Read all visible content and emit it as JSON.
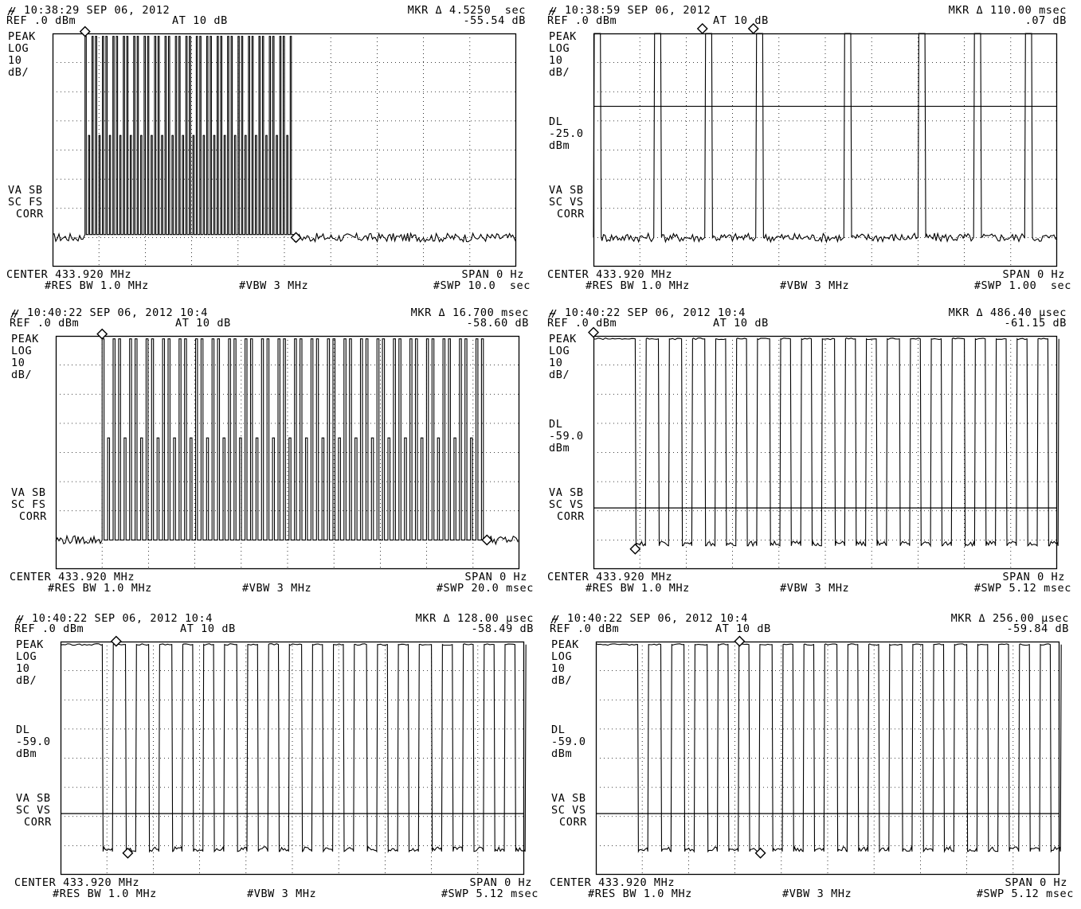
{
  "panels": [
    {
      "timestamp": "10:38:29 SEP 06, 2012",
      "mkr_label": "MKR Δ 4.5250  sec",
      "mkr_value": "-55.54 dB",
      "ref": "REF .0 dBm",
      "atten": "AT 10 dB",
      "left_labels": [
        "PEAK",
        "LOG",
        "10",
        "dB/"
      ],
      "dl": [],
      "mode_labels": [
        "VA SB",
        "SC FS",
        "CORR"
      ],
      "center": "CENTER 433.920 MHz",
      "span": "SPAN 0 Hz",
      "res_bw": "#RES BW 1.0 MHz",
      "vbw": "#VBW 3 MHz",
      "swp": "#SWP 10.0  sec",
      "trace": {
        "noise_level": -70,
        "bursts": [
          [
            0.07,
            0.52
          ]
        ],
        "burst_style": "dense",
        "pulse_count": 60,
        "high_level": -1,
        "low_level": -69,
        "markers": [
          0.07,
          0.525
        ],
        "display_line": null
      }
    },
    {
      "timestamp": "10:38:59 SEP 06, 2012",
      "mkr_label": "MKR Δ 110.00 msec",
      "mkr_value": ".07 dB",
      "ref": "REF .0 dBm",
      "atten": "AT 10 dB",
      "left_labels": [
        "PEAK",
        "LOG",
        "10",
        "dB/"
      ],
      "dl": [
        "DL",
        "-25.0",
        "dBm"
      ],
      "mode_labels": [
        "VA SB",
        "SC VS",
        "CORR"
      ],
      "center": "CENTER 433.920 MHz",
      "span": "SPAN 0 Hz",
      "res_bw": "#RES BW 1.0 MHz",
      "vbw": "#VBW 3 MHz",
      "swp": "#SWP 1.00  sec",
      "trace": {
        "noise_level": -70,
        "pulses": [
          0.0,
          0.13,
          0.24,
          0.35,
          0.54,
          0.7,
          0.82,
          0.93
        ],
        "pulse_width": 0.015,
        "high_level": 0,
        "markers": [
          0.235,
          0.345
        ],
        "display_line": -25
      }
    },
    {
      "timestamp": "10:40:22 SEP 06, 2012 10:4",
      "mkr_label": "MKR Δ 16.700 msec",
      "mkr_value": "-58.60 dB",
      "ref": "REF .0 dBm",
      "atten": "AT 10 dB",
      "left_labels": [
        "PEAK",
        "LOG",
        "10",
        "dB/"
      ],
      "dl": [],
      "mode_labels": [
        "VA SB",
        "SC FS",
        "CORR"
      ],
      "center": "CENTER 433.920 MHz",
      "span": "SPAN 0 Hz",
      "res_bw": "#RES BW 1.0 MHz",
      "vbw": "#VBW 3 MHz",
      "swp": "#SWP 20.0 msec",
      "trace": {
        "noise_level": -70,
        "bursts": [
          [
            0.1,
            0.93
          ]
        ],
        "burst_style": "dense",
        "pulse_count": 70,
        "high_level": -1,
        "low_level": -70,
        "markers": [
          0.1,
          0.93
        ],
        "display_line": null
      }
    },
    {
      "timestamp": "10:40:22 SEP 06, 2012 10:4",
      "mkr_label": "MKR Δ 486.40 μsec",
      "mkr_value": "-61.15 dB",
      "ref": "REF .0 dBm",
      "atten": "AT 10 dB",
      "left_labels": [
        "PEAK",
        "LOG",
        "10",
        "dB/"
      ],
      "dl": [
        "DL",
        "-59.0",
        "dBm"
      ],
      "mode_labels": [
        "VA SB",
        "SC VS",
        "CORR"
      ],
      "center": "CENTER 433.920 MHz",
      "span": "SPAN 0 Hz",
      "res_bw": "#RES BW 1.0 MHz",
      "vbw": "#VBW 3 MHz",
      "swp": "#SWP 5.12 msec",
      "trace": {
        "lead_high_until": 0.09,
        "gaps": [
          0.09,
          0.14,
          0.19,
          0.24,
          0.285,
          0.33,
          0.38,
          0.425,
          0.47,
          0.52,
          0.565,
          0.61,
          0.66,
          0.705,
          0.75,
          0.8,
          0.845,
          0.89,
          0.935,
          0.98
        ],
        "gap_width": 0.022,
        "high_level": -1,
        "low_level": -72,
        "markers": [
          0.0,
          0.09
        ],
        "display_line": -59
      }
    },
    {
      "timestamp": "10:40:22 SEP 06, 2012 10:4",
      "mkr_label": "MKR Δ 128.00 μsec",
      "mkr_value": "-58.49 dB",
      "ref": "REF .0 dBm",
      "atten": "AT 10 dB",
      "left_labels": [
        "PEAK",
        "LOG",
        "10",
        "dB/"
      ],
      "dl": [
        "DL",
        "-59.0",
        "dBm"
      ],
      "mode_labels": [
        "VA SB",
        "SC VS",
        "CORR"
      ],
      "center": "CENTER 433.920 MHz",
      "span": "SPAN 0 Hz",
      "res_bw": "#RES BW 1.0 MHz",
      "vbw": "#VBW 3 MHz",
      "swp": "#SWP 5.12 msec",
      "trace": {
        "lead_high_until": 0.09,
        "gaps": [
          0.09,
          0.14,
          0.19,
          0.24,
          0.285,
          0.33,
          0.38,
          0.425,
          0.47,
          0.52,
          0.565,
          0.61,
          0.66,
          0.705,
          0.75,
          0.8,
          0.845,
          0.89,
          0.935,
          0.98
        ],
        "gap_width": 0.022,
        "high_level": -1,
        "low_level": -72,
        "markers": [
          0.12,
          0.145
        ],
        "display_line": -59
      }
    },
    {
      "timestamp": "10:40:22 SEP 06, 2012 10:4",
      "mkr_label": "MKR Δ 256.00 μsec",
      "mkr_value": "-59.84 dB",
      "ref": "REF .0 dBm",
      "atten": "AT 10 dB",
      "left_labels": [
        "PEAK",
        "LOG",
        "10",
        "dB/"
      ],
      "dl": [
        "DL",
        "-59.0",
        "dBm"
      ],
      "mode_labels": [
        "VA SB",
        "SC VS",
        "CORR"
      ],
      "center": "CENTER 433.920 MHz",
      "span": "SPAN 0 Hz",
      "res_bw": "#RES BW 1.0 MHz",
      "vbw": "#VBW 3 MHz",
      "swp": "#SWP 5.12 msec",
      "trace": {
        "lead_high_until": 0.09,
        "gaps": [
          0.09,
          0.14,
          0.19,
          0.24,
          0.285,
          0.33,
          0.38,
          0.425,
          0.47,
          0.52,
          0.565,
          0.61,
          0.66,
          0.705,
          0.75,
          0.8,
          0.845,
          0.89,
          0.935,
          0.98
        ],
        "gap_width": 0.022,
        "high_level": -1,
        "low_level": -72,
        "markers": [
          0.31,
          0.355
        ],
        "display_line": -59
      }
    }
  ],
  "chart_data": [
    {
      "type": "line",
      "title": "10:38:29 SEP 06, 2012",
      "xlabel": "CENTER 433.920 MHz / SPAN 0 Hz",
      "ylabel": "dB",
      "ylim": [
        -100,
        0
      ],
      "sweep": "10.0 sec",
      "marker_delta": "4.5250 sec",
      "marker_delta_level": "-55.54 dB",
      "y_per_div": 10,
      "grid": true
    },
    {
      "type": "line",
      "title": "10:38:59 SEP 06, 2012",
      "xlabel": "CENTER 433.920 MHz / SPAN 0 Hz",
      "ylabel": "dB",
      "ylim": [
        -100,
        0
      ],
      "sweep": "1.00 sec",
      "marker_delta": "110.00 msec",
      "marker_delta_level": ".07 dB",
      "display_line": -25.0,
      "y_per_div": 10,
      "grid": true
    },
    {
      "type": "line",
      "title": "10:40:22 SEP 06, 2012 10:4",
      "xlabel": "CENTER 433.920 MHz / SPAN 0 Hz",
      "ylabel": "dB",
      "ylim": [
        -100,
        0
      ],
      "sweep": "20.0 msec",
      "marker_delta": "16.700 msec",
      "marker_delta_level": "-58.60 dB",
      "y_per_div": 10,
      "grid": true
    },
    {
      "type": "line",
      "title": "10:40:22 SEP 06, 2012 10:4",
      "xlabel": "CENTER 433.920 MHz / SPAN 0 Hz",
      "ylabel": "dB",
      "ylim": [
        -100,
        0
      ],
      "sweep": "5.12 msec",
      "marker_delta": "486.40 μsec",
      "marker_delta_level": "-61.15 dB",
      "display_line": -59.0,
      "y_per_div": 10,
      "grid": true
    },
    {
      "type": "line",
      "title": "10:40:22 SEP 06, 2012 10:4",
      "xlabel": "CENTER 433.920 MHz / SPAN 0 Hz",
      "ylabel": "dB",
      "ylim": [
        -100,
        0
      ],
      "sweep": "5.12 msec",
      "marker_delta": "128.00 μsec",
      "marker_delta_level": "-58.49 dB",
      "display_line": -59.0,
      "y_per_div": 10,
      "grid": true
    },
    {
      "type": "line",
      "title": "10:40:22 SEP 06, 2012 10:4",
      "xlabel": "CENTER 433.920 MHz / SPAN 0 Hz",
      "ylabel": "dB",
      "ylim": [
        -100,
        0
      ],
      "sweep": "5.12 msec",
      "marker_delta": "256.00 μsec",
      "marker_delta_level": "-59.84 dB",
      "display_line": -59.0,
      "y_per_div": 10,
      "grid": true
    }
  ]
}
